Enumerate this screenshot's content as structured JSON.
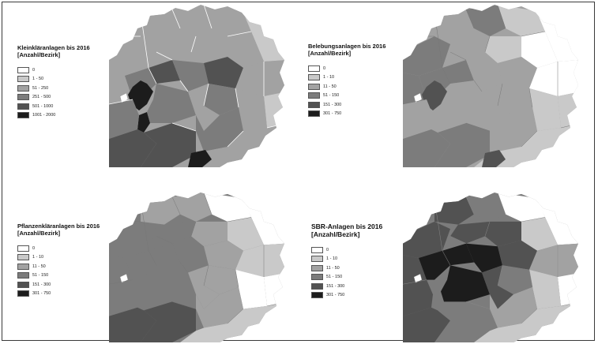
{
  "maps": [
    {
      "id": "kleinklaer",
      "title_line1": "Kleinkläranlagen bis 2016",
      "title_line2": "[Anzahl/Bezirk]",
      "legend": [
        {
          "label": "0",
          "color": "#ffffff"
        },
        {
          "label": "1 - 50",
          "color": "#c9c9c9"
        },
        {
          "label": "51 - 250",
          "color": "#a2a2a2"
        },
        {
          "label": "251 - 500",
          "color": "#7c7c7c"
        },
        {
          "label": "501 - 1000",
          "color": "#525252"
        },
        {
          "label": "1001 - 2000",
          "color": "#1c1c1c"
        }
      ]
    },
    {
      "id": "belebung",
      "title_line1": "Belebungsanlagen bis 2016",
      "title_line2": "[Anzahl/Bezirk]",
      "legend": [
        {
          "label": "0",
          "color": "#ffffff"
        },
        {
          "label": "1 - 10",
          "color": "#c9c9c9"
        },
        {
          "label": "11 - 50",
          "color": "#a2a2a2"
        },
        {
          "label": "51 - 150",
          "color": "#7c7c7c"
        },
        {
          "label": "151 - 300",
          "color": "#525252"
        },
        {
          "label": "301 - 750",
          "color": "#1c1c1c"
        }
      ]
    },
    {
      "id": "pflanzen",
      "title_line1": "Pflanzenkläranlagen bis 2016",
      "title_line2": "[Anzahl/Bezirk]",
      "legend": [
        {
          "label": "0",
          "color": "#ffffff"
        },
        {
          "label": "1 - 10",
          "color": "#c9c9c9"
        },
        {
          "label": "11 - 50",
          "color": "#a2a2a2"
        },
        {
          "label": "51 - 150",
          "color": "#7c7c7c"
        },
        {
          "label": "151 - 300",
          "color": "#525252"
        },
        {
          "label": "301 - 750",
          "color": "#1c1c1c"
        }
      ]
    },
    {
      "id": "sbr",
      "title_line1": "SBR-Anlagen bis 2016",
      "title_line2": "[Anzahl/Bezirk]",
      "legend": [
        {
          "label": "0",
          "color": "#ffffff"
        },
        {
          "label": "1 - 10",
          "color": "#c9c9c9"
        },
        {
          "label": "11 - 50",
          "color": "#a2a2a2"
        },
        {
          "label": "51 - 150",
          "color": "#7c7c7c"
        },
        {
          "label": "151 - 300",
          "color": "#525252"
        },
        {
          "label": "301 - 750",
          "color": "#1c1c1c"
        }
      ]
    }
  ]
}
